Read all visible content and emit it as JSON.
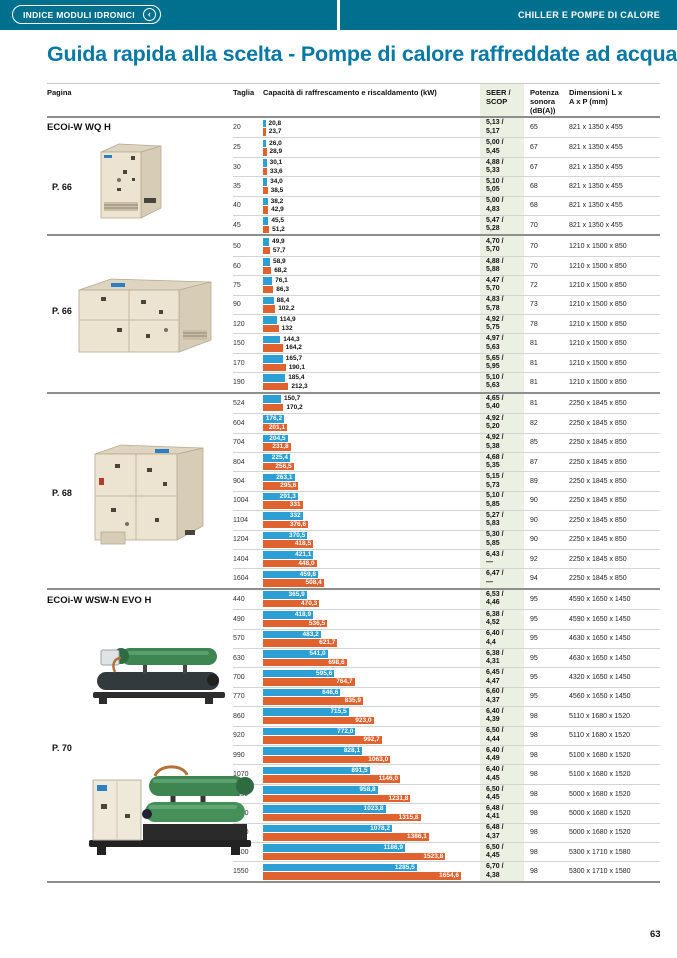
{
  "header": {
    "back_label": "INDICE MODULI IDRONICI",
    "back_chevron": "‹",
    "section_label": "CHILLER E POMPE DI CALORE"
  },
  "title": "Guida rapida alla scelta - Pompe di calore raffreddate ad acqua",
  "colors": {
    "teal": "#00708f",
    "title_teal": "#0878a4",
    "cooling_bar": "#2c9fd4",
    "heating_bar": "#e0622f",
    "seer_column_bg": "#ebf1e2"
  },
  "table": {
    "columns": {
      "pagina": "Pagina",
      "taglia": "Taglia",
      "capacita": "Capacità di raffrescamento e riscaldamento (kW)",
      "seer_line1": "SEER /",
      "seer_line2": "SCOP",
      "potenza_line1": "Potenza",
      "potenza_line2": "sonora",
      "potenza_line3": "(dB(A))",
      "dim_line1": "Dimensioni L x",
      "dim_line2": "A x P (mm)"
    },
    "max_kw": 1654.6,
    "groups": [
      {
        "series": "ECOi-W WQ H",
        "page": "P. 66",
        "image": "cabinet-small",
        "rows": [
          {
            "taglia": "20",
            "cool": 20.8,
            "cool_label": "20,8",
            "heat": 23.7,
            "heat_label": "23,7",
            "seer": "5,13 /",
            "scop": "5,17",
            "db": "65",
            "dim": "821 x 1350 x 455",
            "inside": false
          },
          {
            "taglia": "25",
            "cool": 26.0,
            "cool_label": "26,0",
            "heat": 28.9,
            "heat_label": "28,9",
            "seer": "5,00 /",
            "scop": "5,45",
            "db": "67",
            "dim": "821 x 1350 x 455",
            "inside": false
          },
          {
            "taglia": "30",
            "cool": 30.1,
            "cool_label": "30,1",
            "heat": 33.6,
            "heat_label": "33,6",
            "seer": "4,88 /",
            "scop": "5,33",
            "db": "67",
            "dim": "821 x 1350 x 455",
            "inside": false
          },
          {
            "taglia": "35",
            "cool": 34.0,
            "cool_label": "34,0",
            "heat": 38.5,
            "heat_label": "38,5",
            "seer": "5,10 /",
            "scop": "5,05",
            "db": "68",
            "dim": "821 x 1350 x 455",
            "inside": false
          },
          {
            "taglia": "40",
            "cool": 38.2,
            "cool_label": "38,2",
            "heat": 42.9,
            "heat_label": "42,9",
            "seer": "5,00 /",
            "scop": "4,83",
            "db": "68",
            "dim": "821 x 1350 x 455",
            "inside": false
          },
          {
            "taglia": "45",
            "cool": 45.5,
            "cool_label": "45,5",
            "heat": 51.2,
            "heat_label": "51,2",
            "seer": "5,47 /",
            "scop": "5,28",
            "db": "70",
            "dim": "821 x 1350 x 455",
            "inside": false
          }
        ]
      },
      {
        "series": null,
        "page": "P. 66",
        "image": "cabinet-wide",
        "rows": [
          {
            "taglia": "50",
            "cool": 49.9,
            "cool_label": "49,9",
            "heat": 57.7,
            "heat_label": "57,7",
            "seer": "4,70 /",
            "scop": "5,70",
            "db": "70",
            "dim": "1210 x 1500 x 850",
            "inside": false
          },
          {
            "taglia": "60",
            "cool": 58.9,
            "cool_label": "58,9",
            "heat": 68.2,
            "heat_label": "68,2",
            "seer": "4,88 /",
            "scop": "5,88",
            "db": "70",
            "dim": "1210 x 1500 x 850",
            "inside": false
          },
          {
            "taglia": "75",
            "cool": 76.1,
            "cool_label": "76,1",
            "heat": 86.3,
            "heat_label": "86,3",
            "seer": "4,47 /",
            "scop": "5,70",
            "db": "72",
            "dim": "1210 x 1500 x 850",
            "inside": false
          },
          {
            "taglia": "90",
            "cool": 88.4,
            "cool_label": "88,4",
            "heat": 102.2,
            "heat_label": "102,2",
            "seer": "4,83 /",
            "scop": "5,78",
            "db": "73",
            "dim": "1210 x 1500 x 850",
            "inside": false
          },
          {
            "taglia": "120",
            "cool": 114.9,
            "cool_label": "114,9",
            "heat": 132,
            "heat_label": "132",
            "seer": "4,92 /",
            "scop": "5,75",
            "db": "78",
            "dim": "1210 x 1500 x 850",
            "inside": false
          },
          {
            "taglia": "150",
            "cool": 144.3,
            "cool_label": "144,3",
            "heat": 164.2,
            "heat_label": "164,2",
            "seer": "4,97 /",
            "scop": "5,63",
            "db": "81",
            "dim": "1210 x 1500 x 850",
            "inside": false
          },
          {
            "taglia": "170",
            "cool": 165.7,
            "cool_label": "165,7",
            "heat": 190.1,
            "heat_label": "190,1",
            "seer": "5,65 /",
            "scop": "5,95",
            "db": "81",
            "dim": "1210 x 1500 x 850",
            "inside": false
          },
          {
            "taglia": "190",
            "cool": 185.4,
            "cool_label": "185,4",
            "heat": 212.3,
            "heat_label": "212,3",
            "seer": "5,10 /",
            "scop": "5,63",
            "db": "81",
            "dim": "1210 x 1500 x 850",
            "inside": false
          }
        ]
      },
      {
        "series": null,
        "page": "P. 68",
        "image": "cabinet-big",
        "rows": [
          {
            "taglia": "524",
            "cool": 150.7,
            "cool_label": "150,7",
            "heat": 170.2,
            "heat_label": "170,2",
            "seer": "4,65 /",
            "scop": "5,40",
            "db": "81",
            "dim": "2250 x 1845 x 850",
            "inside": false
          },
          {
            "taglia": "604",
            "cool": 176.2,
            "cool_label": "176,2",
            "heat": 201.1,
            "heat_label": "201,1",
            "seer": "4,92 /",
            "scop": "5,20",
            "db": "82",
            "dim": "2250 x 1845 x 850",
            "inside": true
          },
          {
            "taglia": "704",
            "cool": 204.5,
            "cool_label": "204,5",
            "heat": 231.8,
            "heat_label": "231,8",
            "seer": "4,92 /",
            "scop": "5,38",
            "db": "85",
            "dim": "2250 x 1845 x 850",
            "inside": true
          },
          {
            "taglia": "804",
            "cool": 225.4,
            "cool_label": "225,4",
            "heat": 256.5,
            "heat_label": "256,5",
            "seer": "4,68 /",
            "scop": "5,35",
            "db": "87",
            "dim": "2250 x 1845 x 850",
            "inside": true
          },
          {
            "taglia": "904",
            "cool": 263.1,
            "cool_label": "263,1",
            "heat": 295.6,
            "heat_label": "295,6",
            "seer": "5,15 /",
            "scop": "5,73",
            "db": "89",
            "dim": "2250 x 1845 x 850",
            "inside": true
          },
          {
            "taglia": "1004",
            "cool": 291.3,
            "cool_label": "291,3",
            "heat": 331,
            "heat_label": "331",
            "seer": "5,10 /",
            "scop": "5,85",
            "db": "90",
            "dim": "2250 x 1845 x 850",
            "inside": true
          },
          {
            "taglia": "1104",
            "cool": 332,
            "cool_label": "332",
            "heat": 376.6,
            "heat_label": "376,6",
            "seer": "5,27 /",
            "scop": "5,83",
            "db": "90",
            "dim": "2250 x 1845 x 850",
            "inside": true
          },
          {
            "taglia": "1204",
            "cool": 370.5,
            "cool_label": "370,5",
            "heat": 418.5,
            "heat_label": "418,5",
            "seer": "5,30 /",
            "scop": "5,85",
            "db": "90",
            "dim": "2250 x 1845 x 850",
            "inside": true
          },
          {
            "taglia": "1404",
            "cool": 421.1,
            "cool_label": "421,1",
            "heat": 448.0,
            "heat_label": "448,0",
            "seer": "6,43 /",
            "scop": "—",
            "db": "92",
            "dim": "2250 x 1845 x 850",
            "inside": true
          },
          {
            "taglia": "1604",
            "cool": 459.8,
            "cool_label": "459,8",
            "heat": 508.4,
            "heat_label": "508,4",
            "seer": "6,47 /",
            "scop": "—",
            "db": "94",
            "dim": "2250 x 1845 x 850",
            "inside": true
          }
        ]
      },
      {
        "series": "ECOi-W WSW-N EVO H",
        "page": "P. 70",
        "image": "screw-pair",
        "rows": [
          {
            "taglia": "440",
            "cool": 365.9,
            "cool_label": "365,9",
            "heat": 470.3,
            "heat_label": "470,3",
            "seer": "6,53 /",
            "scop": "4,46",
            "db": "95",
            "dim": "4590 x 1650 x 1450",
            "inside": true
          },
          {
            "taglia": "490",
            "cool": 418.9,
            "cool_label": "418,9",
            "heat": 536.5,
            "heat_label": "536,5",
            "seer": "6,38 /",
            "scop": "4,52",
            "db": "95",
            "dim": "4590 x 1650 x 1450",
            "inside": true
          },
          {
            "taglia": "570",
            "cool": 483.2,
            "cool_label": "483,2",
            "heat": 621.7,
            "heat_label": "621,7",
            "seer": "6,40 /",
            "scop": "4,4",
            "db": "95",
            "dim": "4630 x 1650 x 1450",
            "inside": true
          },
          {
            "taglia": "630",
            "cool": 541.0,
            "cool_label": "541,0",
            "heat": 698.6,
            "heat_label": "698,6",
            "seer": "6,38 /",
            "scop": "4,31",
            "db": "95",
            "dim": "4630 x 1650 x 1450",
            "inside": true
          },
          {
            "taglia": "700",
            "cool": 595.6,
            "cool_label": "595,6",
            "heat": 764.7,
            "heat_label": "764,7",
            "seer": "6,45 /",
            "scop": "4,47",
            "db": "95",
            "dim": "4320 x 1650 x 1450",
            "inside": true
          },
          {
            "taglia": "770",
            "cool": 646.6,
            "cool_label": "646,6",
            "heat": 835.9,
            "heat_label": "835,9",
            "seer": "6,60 /",
            "scop": "4,37",
            "db": "95",
            "dim": "4560 x 1650 x 1450",
            "inside": true
          },
          {
            "taglia": "860",
            "cool": 715.5,
            "cool_label": "715,5",
            "heat": 923.0,
            "heat_label": "923,0",
            "seer": "6,40 /",
            "scop": "4,39",
            "db": "98",
            "dim": "5110 x 1680 x 1520",
            "inside": true
          },
          {
            "taglia": "920",
            "cool": 772.0,
            "cool_label": "772,0",
            "heat": 992.7,
            "heat_label": "992,7",
            "seer": "6,50 /",
            "scop": "4,44",
            "db": "98",
            "dim": "5110 x 1680 x 1520",
            "inside": true
          },
          {
            "taglia": "990",
            "cool": 828.1,
            "cool_label": "828,1",
            "heat": 1063.0,
            "heat_label": "1063,0",
            "seer": "6,40 /",
            "scop": "4,49",
            "db": "98",
            "dim": "5100 x 1680 x 1520",
            "inside": true
          },
          {
            "taglia": "1070",
            "cool": 891.5,
            "cool_label": "891,5",
            "heat": 1146.0,
            "heat_label": "1146,0",
            "seer": "6,40 /",
            "scop": "4,45",
            "db": "98",
            "dim": "5100 x 1680 x 1520",
            "inside": true
          },
          {
            "taglia": "1130",
            "cool": 958.8,
            "cool_label": "958,8",
            "heat": 1231.8,
            "heat_label": "1231,8",
            "seer": "6,50 /",
            "scop": "4,45",
            "db": "98",
            "dim": "5000 x 1680 x 1520",
            "inside": true
          },
          {
            "taglia": "1220",
            "cool": 1023.8,
            "cool_label": "1023,8",
            "heat": 1315.8,
            "heat_label": "1315,8",
            "seer": "6,48 /",
            "scop": "4,41",
            "db": "98",
            "dim": "5000 x 1680 x 1520",
            "inside": true
          },
          {
            "taglia": "1280",
            "cool": 1078.2,
            "cool_label": "1078,2",
            "heat": 1386.1,
            "heat_label": "1386,1",
            "seer": "6,48 /",
            "scop": "4,37",
            "db": "98",
            "dim": "5000 x 1680 x 1520",
            "inside": true
          },
          {
            "taglia": "1400",
            "cool": 1186.9,
            "cool_label": "1186,9",
            "heat": 1523.8,
            "heat_label": "1523,8",
            "seer": "6,50 /",
            "scop": "4,45",
            "db": "98",
            "dim": "5300 x 1710 x 1580",
            "inside": true
          },
          {
            "taglia": "1550",
            "cool": 1285.5,
            "cool_label": "1285,5",
            "heat": 1654.6,
            "heat_label": "1654,6",
            "seer": "6,70 /",
            "scop": "4,38",
            "db": "98",
            "dim": "5300 x 1710 x 1580",
            "inside": true
          }
        ]
      }
    ]
  },
  "footer": {
    "page_number": "63"
  }
}
